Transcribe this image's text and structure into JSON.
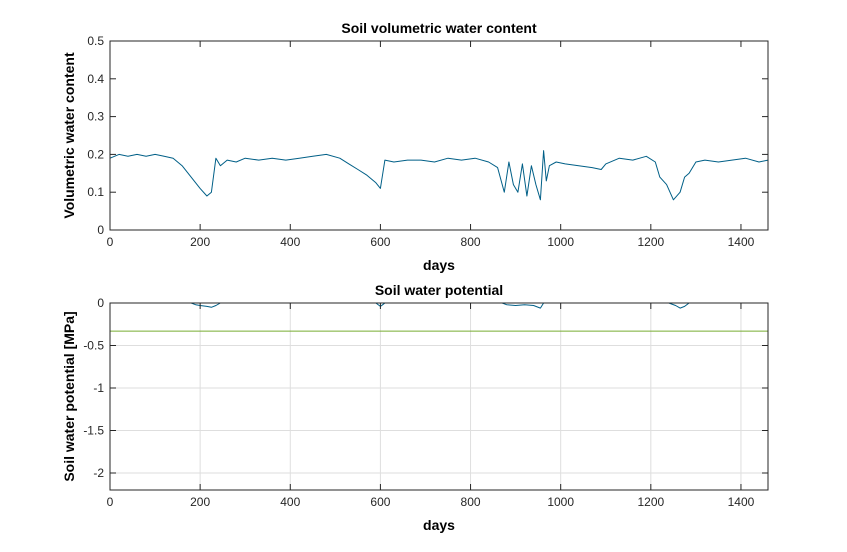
{
  "chart_data": [
    {
      "type": "line",
      "title": "Soil volumetric water content",
      "xlabel": "days",
      "ylabel": "Volumetric water content",
      "xlim": [
        0,
        1460
      ],
      "ylim": [
        0,
        0.5
      ],
      "xticks": [
        0,
        200,
        400,
        600,
        800,
        1000,
        1200,
        1400
      ],
      "yticks": [
        0,
        0.1,
        0.2,
        0.3,
        0.4,
        0.5
      ],
      "xtick_labels": [
        "0",
        "200",
        "400",
        "600",
        "800",
        "1000",
        "1200",
        "1400"
      ],
      "ytick_labels": [
        "0",
        "0.1",
        "0.2",
        "0.3",
        "0.4",
        "0.5"
      ],
      "grid": false,
      "series": [
        {
          "color": "#005f87",
          "x": [
            0,
            20,
            40,
            60,
            80,
            100,
            120,
            140,
            160,
            180,
            200,
            215,
            225,
            235,
            245,
            260,
            280,
            300,
            330,
            360,
            390,
            420,
            450,
            480,
            510,
            530,
            550,
            570,
            590,
            600,
            610,
            630,
            660,
            690,
            720,
            750,
            780,
            810,
            840,
            860,
            875,
            885,
            895,
            905,
            915,
            925,
            935,
            945,
            955,
            962,
            968,
            975,
            990,
            1010,
            1040,
            1070,
            1090,
            1100,
            1130,
            1160,
            1190,
            1210,
            1220,
            1235,
            1250,
            1265,
            1275,
            1285,
            1300,
            1320,
            1350,
            1380,
            1410,
            1440,
            1460
          ],
          "y": [
            0.19,
            0.2,
            0.195,
            0.2,
            0.195,
            0.2,
            0.195,
            0.19,
            0.17,
            0.14,
            0.11,
            0.09,
            0.1,
            0.19,
            0.17,
            0.185,
            0.18,
            0.19,
            0.185,
            0.19,
            0.185,
            0.19,
            0.195,
            0.2,
            0.19,
            0.175,
            0.16,
            0.145,
            0.125,
            0.11,
            0.185,
            0.18,
            0.185,
            0.185,
            0.18,
            0.19,
            0.185,
            0.19,
            0.18,
            0.165,
            0.1,
            0.18,
            0.12,
            0.1,
            0.175,
            0.09,
            0.17,
            0.12,
            0.08,
            0.21,
            0.13,
            0.17,
            0.18,
            0.175,
            0.17,
            0.165,
            0.16,
            0.175,
            0.19,
            0.185,
            0.195,
            0.18,
            0.14,
            0.12,
            0.08,
            0.1,
            0.14,
            0.15,
            0.18,
            0.185,
            0.18,
            0.185,
            0.19,
            0.18,
            0.185
          ]
        }
      ]
    },
    {
      "type": "line",
      "title": "Soil water potential",
      "xlabel": "days",
      "ylabel": "Soil water potential [MPa]",
      "xlim": [
        0,
        1460
      ],
      "ylim": [
        -2.2,
        0
      ],
      "xticks": [
        0,
        200,
        400,
        600,
        800,
        1000,
        1200,
        1400
      ],
      "yticks": [
        -2,
        -1.5,
        -1,
        -0.5,
        0
      ],
      "xtick_labels": [
        "0",
        "200",
        "400",
        "600",
        "800",
        "1000",
        "1200",
        "1400"
      ],
      "ytick_labels": [
        "-2",
        "-1.5",
        "-1",
        "-0.5",
        "0"
      ],
      "grid": true,
      "series": [
        {
          "color": "#005f87",
          "x": [
            0,
            180,
            190,
            200,
            215,
            225,
            235,
            245,
            590,
            600,
            605,
            610,
            870,
            880,
            900,
            920,
            940,
            955,
            962,
            970,
            1240,
            1255,
            1265,
            1275,
            1285,
            1460
          ],
          "y": [
            0,
            0,
            -0.02,
            -0.03,
            -0.04,
            -0.05,
            -0.03,
            0,
            0,
            -0.04,
            -0.02,
            0,
            0,
            -0.02,
            -0.03,
            -0.02,
            -0.03,
            -0.06,
            0,
            0,
            0,
            -0.03,
            -0.06,
            -0.04,
            0,
            0
          ]
        },
        {
          "color": "#77ac30",
          "x": [
            0,
            1460
          ],
          "y": [
            -0.33,
            -0.33
          ]
        }
      ]
    }
  ]
}
